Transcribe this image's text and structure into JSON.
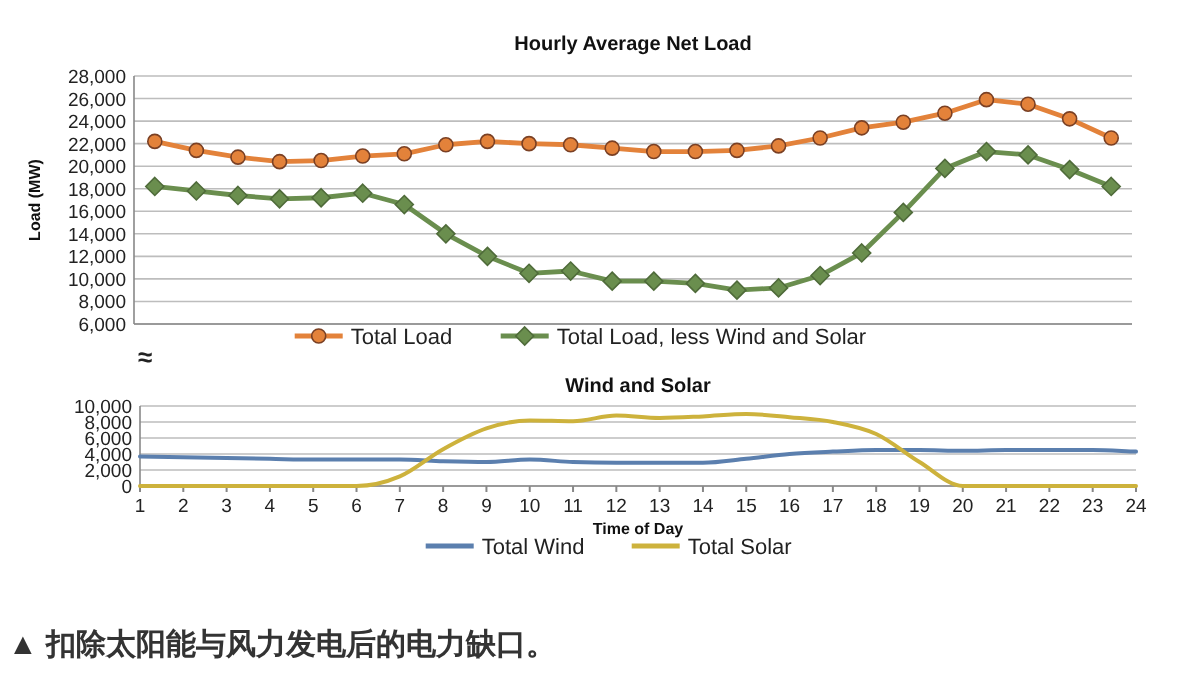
{
  "chart_data": [
    {
      "type": "line",
      "title": "Hourly Average Net Load",
      "ylabel": "Load (MW)",
      "annotations": [
        "≈"
      ],
      "categories": [
        null,
        null,
        null,
        null,
        null,
        null,
        null,
        null,
        null,
        null,
        null,
        null,
        null,
        null,
        null,
        null,
        null,
        null,
        null,
        null,
        null,
        null,
        null,
        null
      ],
      "series": [
        {
          "name": "Total Load",
          "color": "#e3823a",
          "marker": "circle",
          "values": [
            22200,
            21400,
            20800,
            20400,
            20500,
            20900,
            21100,
            21900,
            22200,
            22000,
            21900,
            21600,
            21300,
            21300,
            21400,
            21800,
            22500,
            23400,
            23900,
            24700,
            25900,
            25500,
            24200,
            22500
          ]
        },
        {
          "name": "Total Load, less Wind and Solar",
          "color": "#6a8e4e",
          "marker": "diamond",
          "values": [
            18200,
            17800,
            17400,
            17100,
            17200,
            17600,
            16600,
            14000,
            12000,
            10500,
            10700,
            9800,
            9800,
            9600,
            9000,
            9200,
            10300,
            12300,
            15900,
            19800,
            21300,
            21000,
            19700,
            18200
          ]
        }
      ],
      "ylim": [
        6000,
        28000
      ],
      "yticks": [
        {
          "value": 6000,
          "label": "6,000"
        },
        {
          "value": 8000,
          "label": "8,000"
        },
        {
          "value": 10000,
          "label": "10,000"
        },
        {
          "value": 12000,
          "label": "12,000"
        },
        {
          "value": 14000,
          "label": "14,000"
        },
        {
          "value": 16000,
          "label": "16,000"
        },
        {
          "value": 18000,
          "label": "18,000"
        },
        {
          "value": 20000,
          "label": "20,000"
        },
        {
          "value": 22000,
          "label": "22,000"
        },
        {
          "value": 24000,
          "label": "24,000"
        },
        {
          "value": 26000,
          "label": "26,000"
        },
        {
          "value": 28000,
          "label": "28,000"
        }
      ],
      "grid": "y",
      "legend": "bottom",
      "tick_labels": "y"
    },
    {
      "type": "line",
      "title": "Wind and Solar",
      "xlabel": "Time of Day",
      "annotations": [
        "▲ 扣除太阳能与风力发电后的电力缺口。"
      ],
      "x": [
        1,
        2,
        3,
        4,
        5,
        6,
        7,
        8,
        9,
        10,
        11,
        12,
        13,
        14,
        15,
        16,
        17,
        18,
        19,
        20,
        21,
        22,
        23,
        24
      ],
      "series": [
        {
          "name": "Total Wind",
          "color": "#5b7fae",
          "values": [
            3700,
            3600,
            3500,
            3400,
            3300,
            3300,
            3300,
            3100,
            3000,
            3300,
            3000,
            2900,
            2900,
            2900,
            3400,
            4000,
            4300,
            4500,
            4500,
            4400,
            4500,
            4500,
            4500,
            4300
          ]
        },
        {
          "name": "Total Solar",
          "color": "#cdb23c",
          "values": [
            0,
            0,
            0,
            0,
            0,
            0,
            1200,
            4600,
            7200,
            8200,
            8100,
            8800,
            8500,
            8700,
            9000,
            8600,
            8000,
            6500,
            3000,
            0,
            0,
            0,
            0,
            0
          ]
        }
      ],
      "xlim": [
        1,
        24
      ],
      "xticks": [
        1,
        2,
        3,
        4,
        5,
        6,
        7,
        8,
        9,
        10,
        11,
        12,
        13,
        14,
        15,
        16,
        17,
        18,
        19,
        20,
        21,
        22,
        23,
        24
      ],
      "ylim": [
        0,
        10000
      ],
      "yticks": [
        0,
        {
          "value": 2000,
          "label": "2,000"
        },
        {
          "value": 4000,
          "label": "4,000"
        },
        {
          "value": 6000,
          "label": "6,000"
        },
        {
          "value": 8000,
          "label": "8,000"
        },
        {
          "value": 10000,
          "label": "10,000"
        }
      ],
      "grid": "y",
      "legend": "bottom",
      "marker": "none",
      "line_style": "solid"
    }
  ]
}
